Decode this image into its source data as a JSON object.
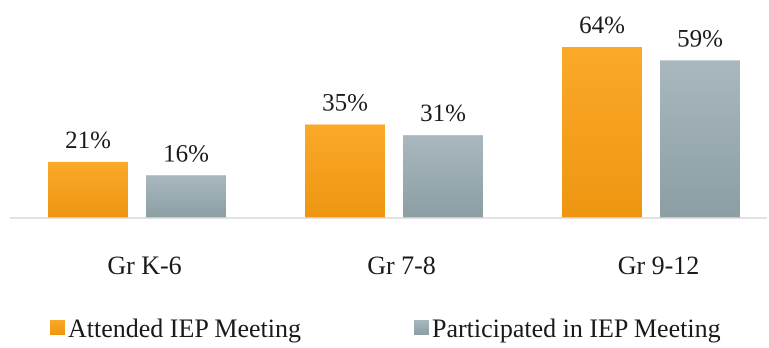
{
  "chart_data": {
    "type": "bar",
    "title": "",
    "xlabel": "",
    "ylabel": "",
    "categories": [
      "Gr K-6",
      "Gr 7-8",
      "Gr 9-12"
    ],
    "series": [
      {
        "name": "Attended IEP Meeting",
        "values": [
          21,
          35,
          64
        ],
        "labels": [
          "21%",
          "35%",
          "64%"
        ],
        "color_top": "#fba928",
        "color_bottom": "#ee9612"
      },
      {
        "name": "Participated in IEP Meeting",
        "values": [
          16,
          31,
          59
        ],
        "labels": [
          "16%",
          "31%",
          "59%"
        ],
        "color_top": "#a8b8be",
        "color_bottom": "#8c9ea4"
      }
    ],
    "ylim": [
      0,
      64
    ],
    "grid": false,
    "legend_position": "bottom"
  }
}
